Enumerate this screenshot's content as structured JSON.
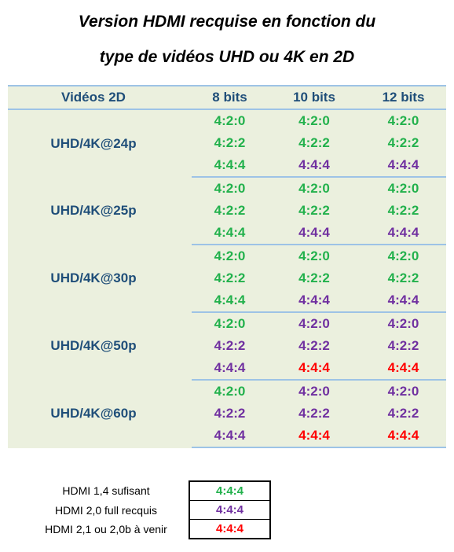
{
  "title": {
    "line1": "Version HDMI recquise en fonction du",
    "line2": "type de vidéos UHD ou 4K en 2D"
  },
  "colors": {
    "green": "#22b14c",
    "purple": "#7030a0",
    "red": "#ff0000",
    "header_text": "#1f4e79",
    "table_background": "#ebf0de",
    "divider": "#9dc3e6"
  },
  "table": {
    "headers": [
      "Vidéos 2D",
      "8 bits",
      "10 bits",
      "12 bits"
    ],
    "groups": [
      {
        "resolution": "UHD/4K@24p",
        "rows": [
          [
            {
              "text": "4:2:0",
              "color": "green"
            },
            {
              "text": "4:2:0",
              "color": "green"
            },
            {
              "text": "4:2:0",
              "color": "green"
            }
          ],
          [
            {
              "text": "4:2:2",
              "color": "green"
            },
            {
              "text": "4:2:2",
              "color": "green"
            },
            {
              "text": "4:2:2",
              "color": "green"
            }
          ],
          [
            {
              "text": "4:4:4",
              "color": "green"
            },
            {
              "text": "4:4:4",
              "color": "purple"
            },
            {
              "text": "4:4:4",
              "color": "purple"
            }
          ]
        ]
      },
      {
        "resolution": "UHD/4K@25p",
        "rows": [
          [
            {
              "text": "4:2:0",
              "color": "green"
            },
            {
              "text": "4:2:0",
              "color": "green"
            },
            {
              "text": "4:2:0",
              "color": "green"
            }
          ],
          [
            {
              "text": "4:2:2",
              "color": "green"
            },
            {
              "text": "4:2:2",
              "color": "green"
            },
            {
              "text": "4:2:2",
              "color": "green"
            }
          ],
          [
            {
              "text": "4:4:4",
              "color": "green"
            },
            {
              "text": "4:4:4",
              "color": "purple"
            },
            {
              "text": "4:4:4",
              "color": "purple"
            }
          ]
        ]
      },
      {
        "resolution": "UHD/4K@30p",
        "rows": [
          [
            {
              "text": "4:2:0",
              "color": "green"
            },
            {
              "text": "4:2:0",
              "color": "green"
            },
            {
              "text": "4:2:0",
              "color": "green"
            }
          ],
          [
            {
              "text": "4:2:2",
              "color": "green"
            },
            {
              "text": "4:2:2",
              "color": "green"
            },
            {
              "text": "4:2:2",
              "color": "green"
            }
          ],
          [
            {
              "text": "4:4:4",
              "color": "green"
            },
            {
              "text": "4:4:4",
              "color": "purple"
            },
            {
              "text": "4:4:4",
              "color": "purple"
            }
          ]
        ]
      },
      {
        "resolution": "UHD/4K@50p",
        "rows": [
          [
            {
              "text": "4:2:0",
              "color": "green"
            },
            {
              "text": "4:2:0",
              "color": "purple"
            },
            {
              "text": "4:2:0",
              "color": "purple"
            }
          ],
          [
            {
              "text": "4:2:2",
              "color": "purple"
            },
            {
              "text": "4:2:2",
              "color": "purple"
            },
            {
              "text": "4:2:2",
              "color": "purple"
            }
          ],
          [
            {
              "text": "4:4:4",
              "color": "purple"
            },
            {
              "text": "4:4:4",
              "color": "red"
            },
            {
              "text": "4:4:4",
              "color": "red"
            }
          ]
        ]
      },
      {
        "resolution": "UHD/4K@60p",
        "rows": [
          [
            {
              "text": "4:2:0",
              "color": "green"
            },
            {
              "text": "4:2:0",
              "color": "purple"
            },
            {
              "text": "4:2:0",
              "color": "purple"
            }
          ],
          [
            {
              "text": "4:2:2",
              "color": "purple"
            },
            {
              "text": "4:2:2",
              "color": "purple"
            },
            {
              "text": "4:2:2",
              "color": "purple"
            }
          ],
          [
            {
              "text": "4:4:4",
              "color": "purple"
            },
            {
              "text": "4:4:4",
              "color": "red"
            },
            {
              "text": "4:4:4",
              "color": "red"
            }
          ]
        ]
      }
    ]
  },
  "legend": [
    {
      "label": "HDMI 1,4 sufisant",
      "value": "4:4:4",
      "color": "green"
    },
    {
      "label": "HDMI 2,0 full recquis",
      "value": "4:4:4",
      "color": "purple"
    },
    {
      "label": "HDMI 2,1 ou 2,0b à venir",
      "value": "4:4:4",
      "color": "red"
    }
  ]
}
